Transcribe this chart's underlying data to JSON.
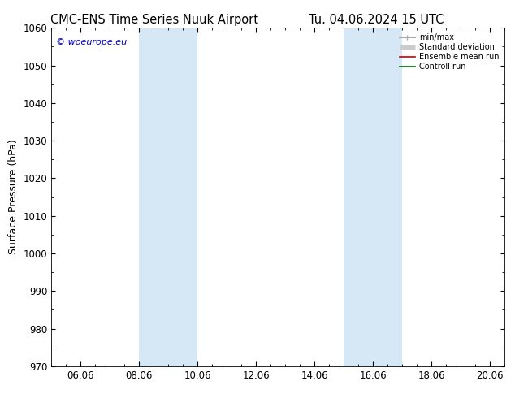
{
  "title_left": "CMC-ENS Time Series Nuuk Airport",
  "title_right": "Tu. 04.06.2024 15 UTC",
  "ylabel": "Surface Pressure (hPa)",
  "ylim": [
    970,
    1060
  ],
  "yticks": [
    970,
    980,
    990,
    1000,
    1010,
    1020,
    1030,
    1040,
    1050,
    1060
  ],
  "xlim_days": [
    5.0,
    20.5
  ],
  "xtick_labels": [
    "06.06",
    "08.06",
    "10.06",
    "12.06",
    "14.06",
    "16.06",
    "18.06",
    "20.06"
  ],
  "xtick_positions": [
    6.0,
    8.0,
    10.0,
    12.0,
    14.0,
    16.0,
    18.0,
    20.0
  ],
  "shaded_bands": [
    {
      "xmin": 8.0,
      "xmax": 10.0
    },
    {
      "xmin": 15.0,
      "xmax": 17.0
    }
  ],
  "shade_color": "#d6e8f5",
  "background_color": "#ffffff",
  "watermark": "© woeurope.eu",
  "legend_items": [
    {
      "label": "min/max",
      "color": "#aaaaaa",
      "lw": 1.5
    },
    {
      "label": "Standard deviation",
      "color": "#cccccc",
      "lw": 5
    },
    {
      "label": "Ensemble mean run",
      "color": "#cc0000",
      "lw": 1.2
    },
    {
      "label": "Controll run",
      "color": "#006600",
      "lw": 1.2
    }
  ],
  "title_fontsize": 10.5,
  "tick_fontsize": 8.5,
  "ylabel_fontsize": 9
}
